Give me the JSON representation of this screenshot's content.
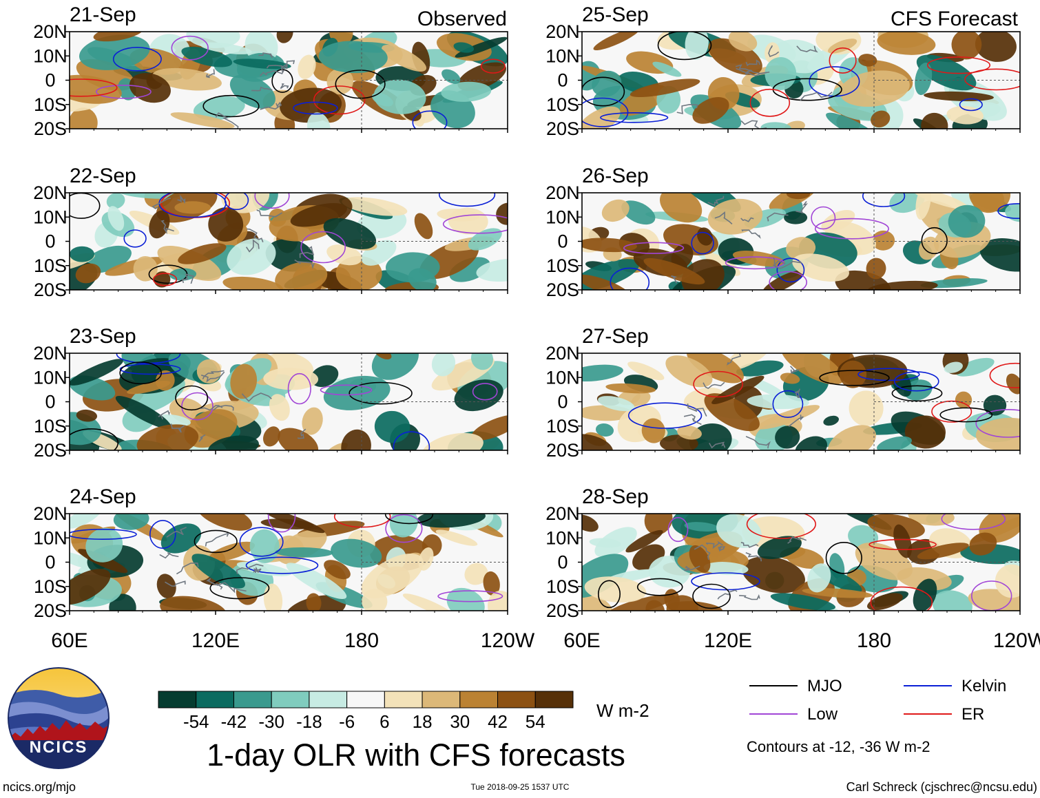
{
  "chart_data": {
    "type": "heatmap",
    "title": "1-day OLR with CFS forecasts",
    "observed_label": "Observed",
    "forecast_label": "CFS Forecast",
    "x_tick_labels": [
      "60E",
      "120E",
      "180",
      "120W"
    ],
    "x_tick_values_deg_east": [
      60,
      120,
      180,
      240
    ],
    "xlim_deg_east": [
      60,
      240
    ],
    "y_tick_labels": [
      "20N",
      "10N",
      "0",
      "10S",
      "20S"
    ],
    "y_tick_values": [
      20,
      10,
      0,
      -10,
      -20
    ],
    "ylim": [
      -20,
      20
    ],
    "panels": [
      {
        "date": "21-Sep",
        "source": "Observed",
        "seed": 11
      },
      {
        "date": "22-Sep",
        "source": "Observed",
        "seed": 23
      },
      {
        "date": "23-Sep",
        "source": "Observed",
        "seed": 37
      },
      {
        "date": "24-Sep",
        "source": "Observed",
        "seed": 41
      },
      {
        "date": "25-Sep",
        "source": "CFS Forecast",
        "seed": 53
      },
      {
        "date": "26-Sep",
        "source": "CFS Forecast",
        "seed": 67
      },
      {
        "date": "27-Sep",
        "source": "CFS Forecast",
        "seed": 71
      },
      {
        "date": "28-Sep",
        "source": "CFS Forecast",
        "seed": 89
      }
    ],
    "colorbar": {
      "unit": "W m-2",
      "labels": [
        "-54",
        "-42",
        "-30",
        "-18",
        "-6",
        "6",
        "18",
        "30",
        "42",
        "54"
      ],
      "colors": [
        "#053c30",
        "#0b6b60",
        "#3a9a8e",
        "#80ccbe",
        "#c7ebe3",
        "#f7f7f7",
        "#f3e2b9",
        "#dcb878",
        "#bb8233",
        "#8c5112",
        "#563008"
      ]
    },
    "legend": {
      "items": [
        {
          "label": "MJO",
          "color": "#000000"
        },
        {
          "label": "Kelvin",
          "color": "#0a1fd6"
        },
        {
          "label": "Low",
          "color": "#a145d6"
        },
        {
          "label": "ER",
          "color": "#e01818"
        }
      ],
      "note": "Contours at -12, -36 W m-2"
    }
  },
  "footer": {
    "logo_text": "NCICS",
    "url": "ncics.org/mjo",
    "timestamp": "Tue 2018-09-25 1537 UTC",
    "author": "Carl Schreck (cjschrec@ncsu.edu)"
  }
}
